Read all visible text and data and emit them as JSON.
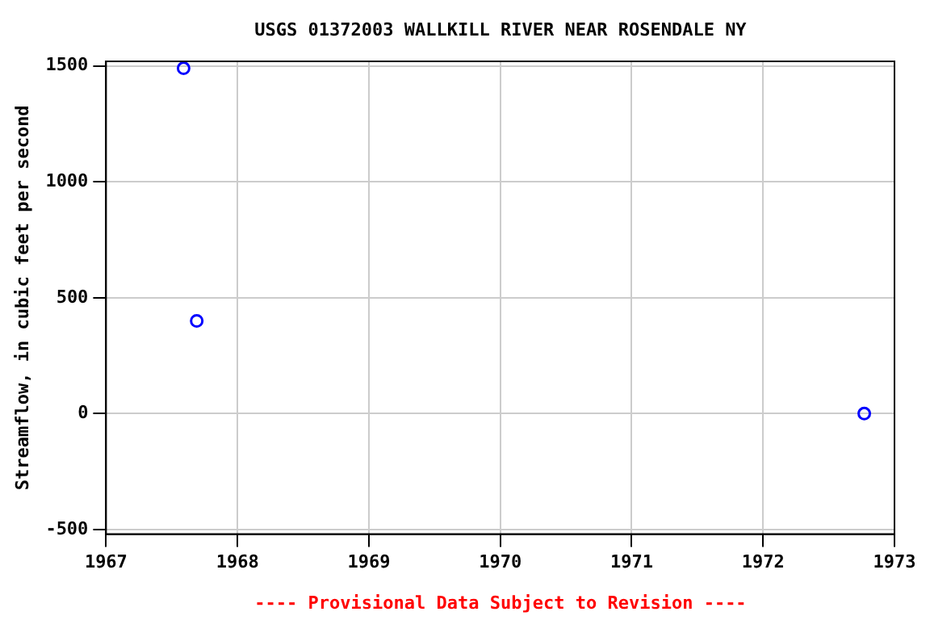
{
  "chart_data": {
    "type": "scatter",
    "title": "USGS 01372003 WALLKILL RIVER NEAR ROSENDALE NY",
    "ylabel": "Streamflow, in cubic feet per second",
    "annotations": [
      "---- Provisional Data Subject to Revision ----"
    ],
    "x": [
      1967.59,
      1967.69,
      1972.77
    ],
    "series": [
      {
        "color": "#0000ff",
        "values": [
          1490,
          400,
          0
        ]
      }
    ],
    "xlim": [
      1967,
      1973
    ],
    "xticks": [
      1967,
      1968,
      1969,
      1970,
      1971,
      1972,
      1973
    ],
    "ylim": [
      -520,
      1520
    ],
    "yticks": [
      -500,
      0,
      500,
      1000,
      1500
    ],
    "grid": true,
    "legend": false,
    "marker": "circle"
  }
}
